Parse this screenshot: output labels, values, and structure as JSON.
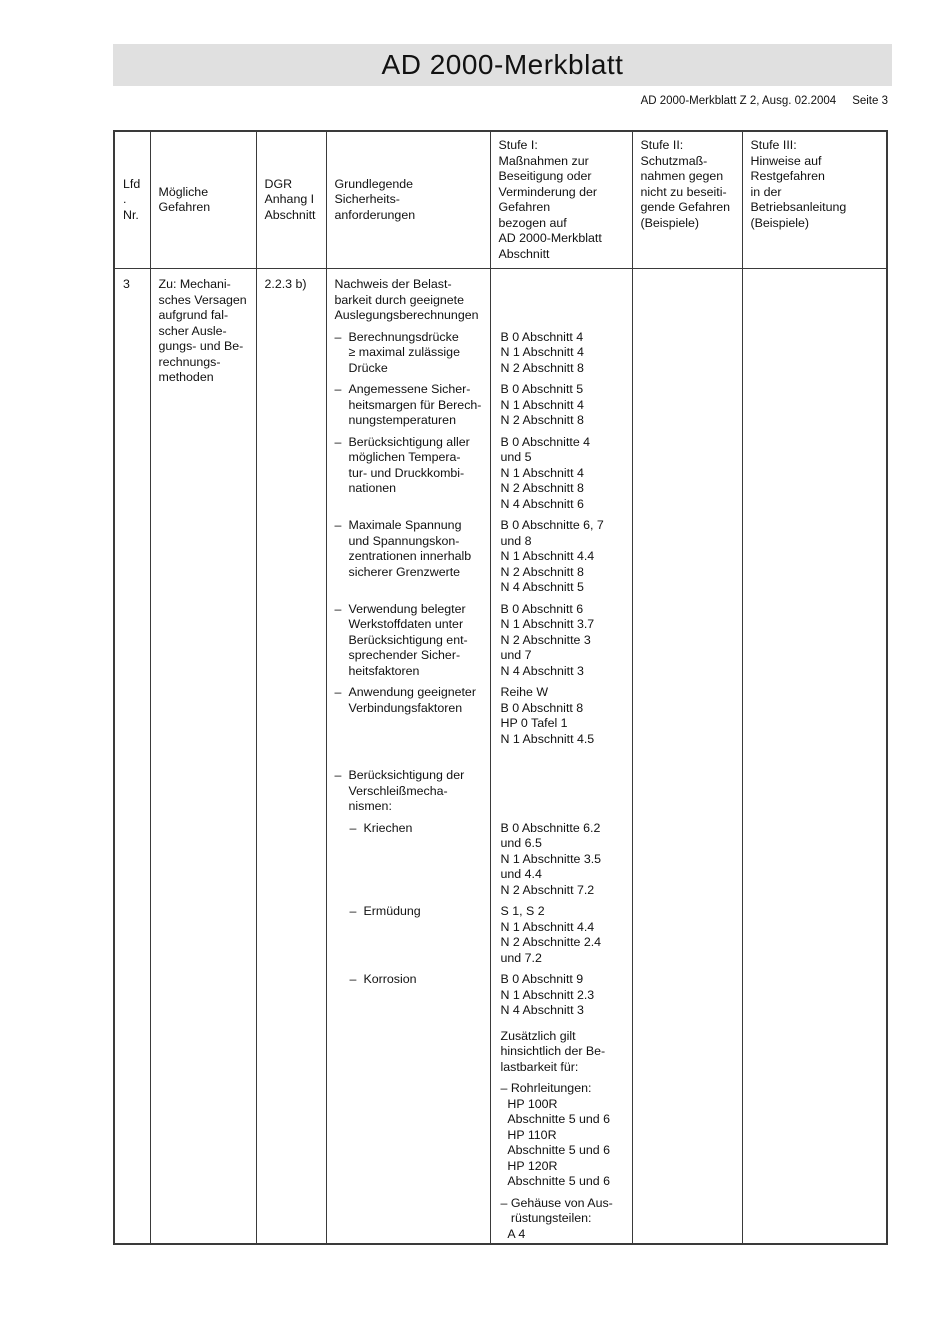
{
  "colors": {
    "band_bg": "#e0e0e0",
    "border": "#3a3a3a",
    "text": "#111111",
    "page_bg": "#ffffff"
  },
  "glyphs": {
    "dash": "–"
  },
  "header": {
    "title": "AD 2000-Merkblatt",
    "doc_ref": "AD 2000-Merkblatt Z 2, Ausg. 02.2004",
    "page_label": "Seite 3"
  },
  "table": {
    "headers": [
      "Lfd.\nNr.",
      "Mögliche\nGefahren",
      "DGR\nAnhang I\nAbschnitt",
      "Grundlegende\nSicherheits-\nanforderungen",
      "Stufe I:\nMaßnahmen zur\nBeseitigung oder\nVerminderung der\nGefahren\nbezogen auf\nAD 2000-Merkblatt\nAbschnitt",
      "Stufe II:\nSchutzmaß-\nnahmen gegen\nnicht zu beseiti-\ngende Gefahren\n(Beispiele)",
      "Stufe III:\nHinweise auf\nRestgefahren\nin der\nBetriebsanleitung\n(Beispiele)"
    ],
    "row": {
      "nr": "3",
      "gefahr": "Zu: Mechani-\nsches Versagen\naufgrund fal-\nscher Ausle-\ngungs- und Be-\nrechnungs-\nmethoden",
      "dgr": "2.2.3 b)",
      "stufe2": "",
      "stufe3": "",
      "items": [
        {
          "type": "text",
          "text": "Nachweis der Belast-\nbarkeit durch geeignete\nAuslegungsberechnungen",
          "ref": ""
        },
        {
          "type": "b1",
          "text": "Berechnungsdrücke\n≥ maximal zulässige\nDrücke",
          "ref": "B 0 Abschnitt 4\nN 1 Abschnitt 4\nN 2 Abschnitt 8"
        },
        {
          "type": "b1",
          "text": "Angemessene Sicher-\nheitsmargen für Berech-\nnungstemperaturen",
          "ref": "B 0 Abschnitt 5\nN 1 Abschnitt 4\nN 2 Abschnitt 8"
        },
        {
          "type": "b1",
          "text": "Berücksichtigung aller\nmöglichen Tempera-\ntur- und Druckkombi-\nnationen",
          "ref": "B 0 Abschnitte 4\nund 5\nN 1 Abschnitt 4\nN 2 Abschnitt 8\nN 4 Abschnitt 6"
        },
        {
          "type": "b1",
          "text": "Maximale Spannung\nund Spannungskon-\nzentrationen innerhalb\nsicherer Grenzwerte",
          "ref": "B 0 Abschnitte 6, 7\nund 8\nN 1 Abschnitt 4.4\nN 2 Abschnitt 8\nN 4 Abschnitt 5"
        },
        {
          "type": "b1",
          "text": "Verwendung belegter\nWerkstoffdaten unter\nBerücksichtigung ent-\nsprechender Sicher-\nheitsfaktoren",
          "ref": "B 0 Abschnitt 6\nN 1 Abschnitt 3.7\nN 2 Abschnitte 3\nund 7\nN 4 Abschnitt 3"
        },
        {
          "type": "b1",
          "text": "Anwendung geeigneter\nVerbindungsfaktoren",
          "ref": "Reihe W\nB 0 Abschnitt 8\nHP 0 Tafel 1\nN 1 Abschnitt 4.5"
        },
        {
          "type": "b1",
          "text": "Berücksichtigung der\nVerschleißmecha-\nnismen:",
          "ref": ""
        },
        {
          "type": "b2",
          "text": "Kriechen",
          "ref": "B 0 Abschnitte 6.2\nund 6.5\nN 1 Abschnitte 3.5\nund 4.4\nN 2 Abschnitt 7.2"
        },
        {
          "type": "b2",
          "text": "Ermüdung",
          "ref": "S 1, S 2\nN 1 Abschnitt 4.4\nN 2 Abschnitte 2.4\nund 7.2"
        },
        {
          "type": "b2",
          "text": "Korrosion",
          "ref": "B 0 Abschnitt 9\nN 1 Abschnitt 2.3\nN 4 Abschnitt 3"
        },
        {
          "type": "none",
          "text": "",
          "ref": "Zusätzlich gilt\nhinsichtlich der Be-\nlastbarkeit für:"
        },
        {
          "type": "none",
          "text": "",
          "ref": "– Rohrleitungen:\n  HP 100R\n  Abschnitte 5 und 6\n  HP 110R\n  Abschnitte 5 und 6\n  HP 120R\n  Abschnitte 5 und 6"
        },
        {
          "type": "none",
          "text": "",
          "ref": "– Gehäuse von Aus-\n   rüstungsteilen:\n  A 4"
        }
      ]
    }
  }
}
